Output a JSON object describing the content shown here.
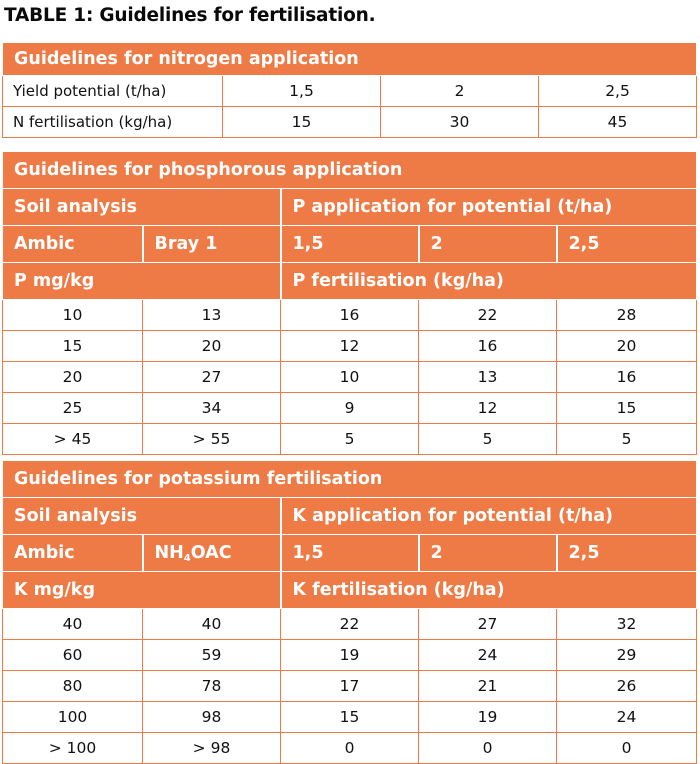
{
  "title": "TABLE 1: Guidelines for fertilisation.",
  "colors": {
    "header_bg": "#EE7A45",
    "header_text": "#FFFFFF",
    "border": "#EF7A45"
  },
  "nitrogen": {
    "heading": "Guidelines for nitrogen application",
    "rows": [
      {
        "label": "Yield potential (t/ha)",
        "values": [
          "1,5",
          "2",
          "2,5"
        ]
      },
      {
        "label": "N fertilisation (kg/ha)",
        "values": [
          "15",
          "30",
          "45"
        ]
      }
    ]
  },
  "phosphorous": {
    "heading": "Guidelines for phosphorous application",
    "soil_analysis": "Soil analysis",
    "application_header": "P application for potential (t/ha)",
    "col_ambic": "Ambic",
    "col_bray": "Bray 1",
    "potentials": [
      "1,5",
      "2",
      "2,5"
    ],
    "unit_label": "P mg/kg",
    "fert_label": "P fertilisation (kg/ha)",
    "rows": [
      [
        "10",
        "13",
        "16",
        "22",
        "28"
      ],
      [
        "15",
        "20",
        "12",
        "16",
        "20"
      ],
      [
        "20",
        "27",
        "10",
        "13",
        "16"
      ],
      [
        "25",
        "34",
        "9",
        "12",
        "15"
      ],
      [
        "> 45",
        "> 55",
        "5",
        "5",
        "5"
      ]
    ]
  },
  "potassium": {
    "heading": "Guidelines for potassium fertilisation",
    "soil_analysis": "Soil analysis",
    "application_header": "K application for potential (t/ha)",
    "col_ambic": "Ambic",
    "col_nh4oac_prefix": "NH",
    "col_nh4oac_sub": "4",
    "col_nh4oac_suffix": "OAC",
    "potentials": [
      "1,5",
      "2",
      "2,5"
    ],
    "unit_label": "K mg/kg",
    "fert_label": "K fertilisation (kg/ha)",
    "rows": [
      [
        "40",
        "40",
        "22",
        "27",
        "32"
      ],
      [
        "60",
        "59",
        "19",
        "24",
        "29"
      ],
      [
        "80",
        "78",
        "17",
        "21",
        "26"
      ],
      [
        "100",
        "98",
        "15",
        "19",
        "24"
      ],
      [
        "> 100",
        "> 98",
        "0",
        "0",
        "0"
      ]
    ]
  }
}
